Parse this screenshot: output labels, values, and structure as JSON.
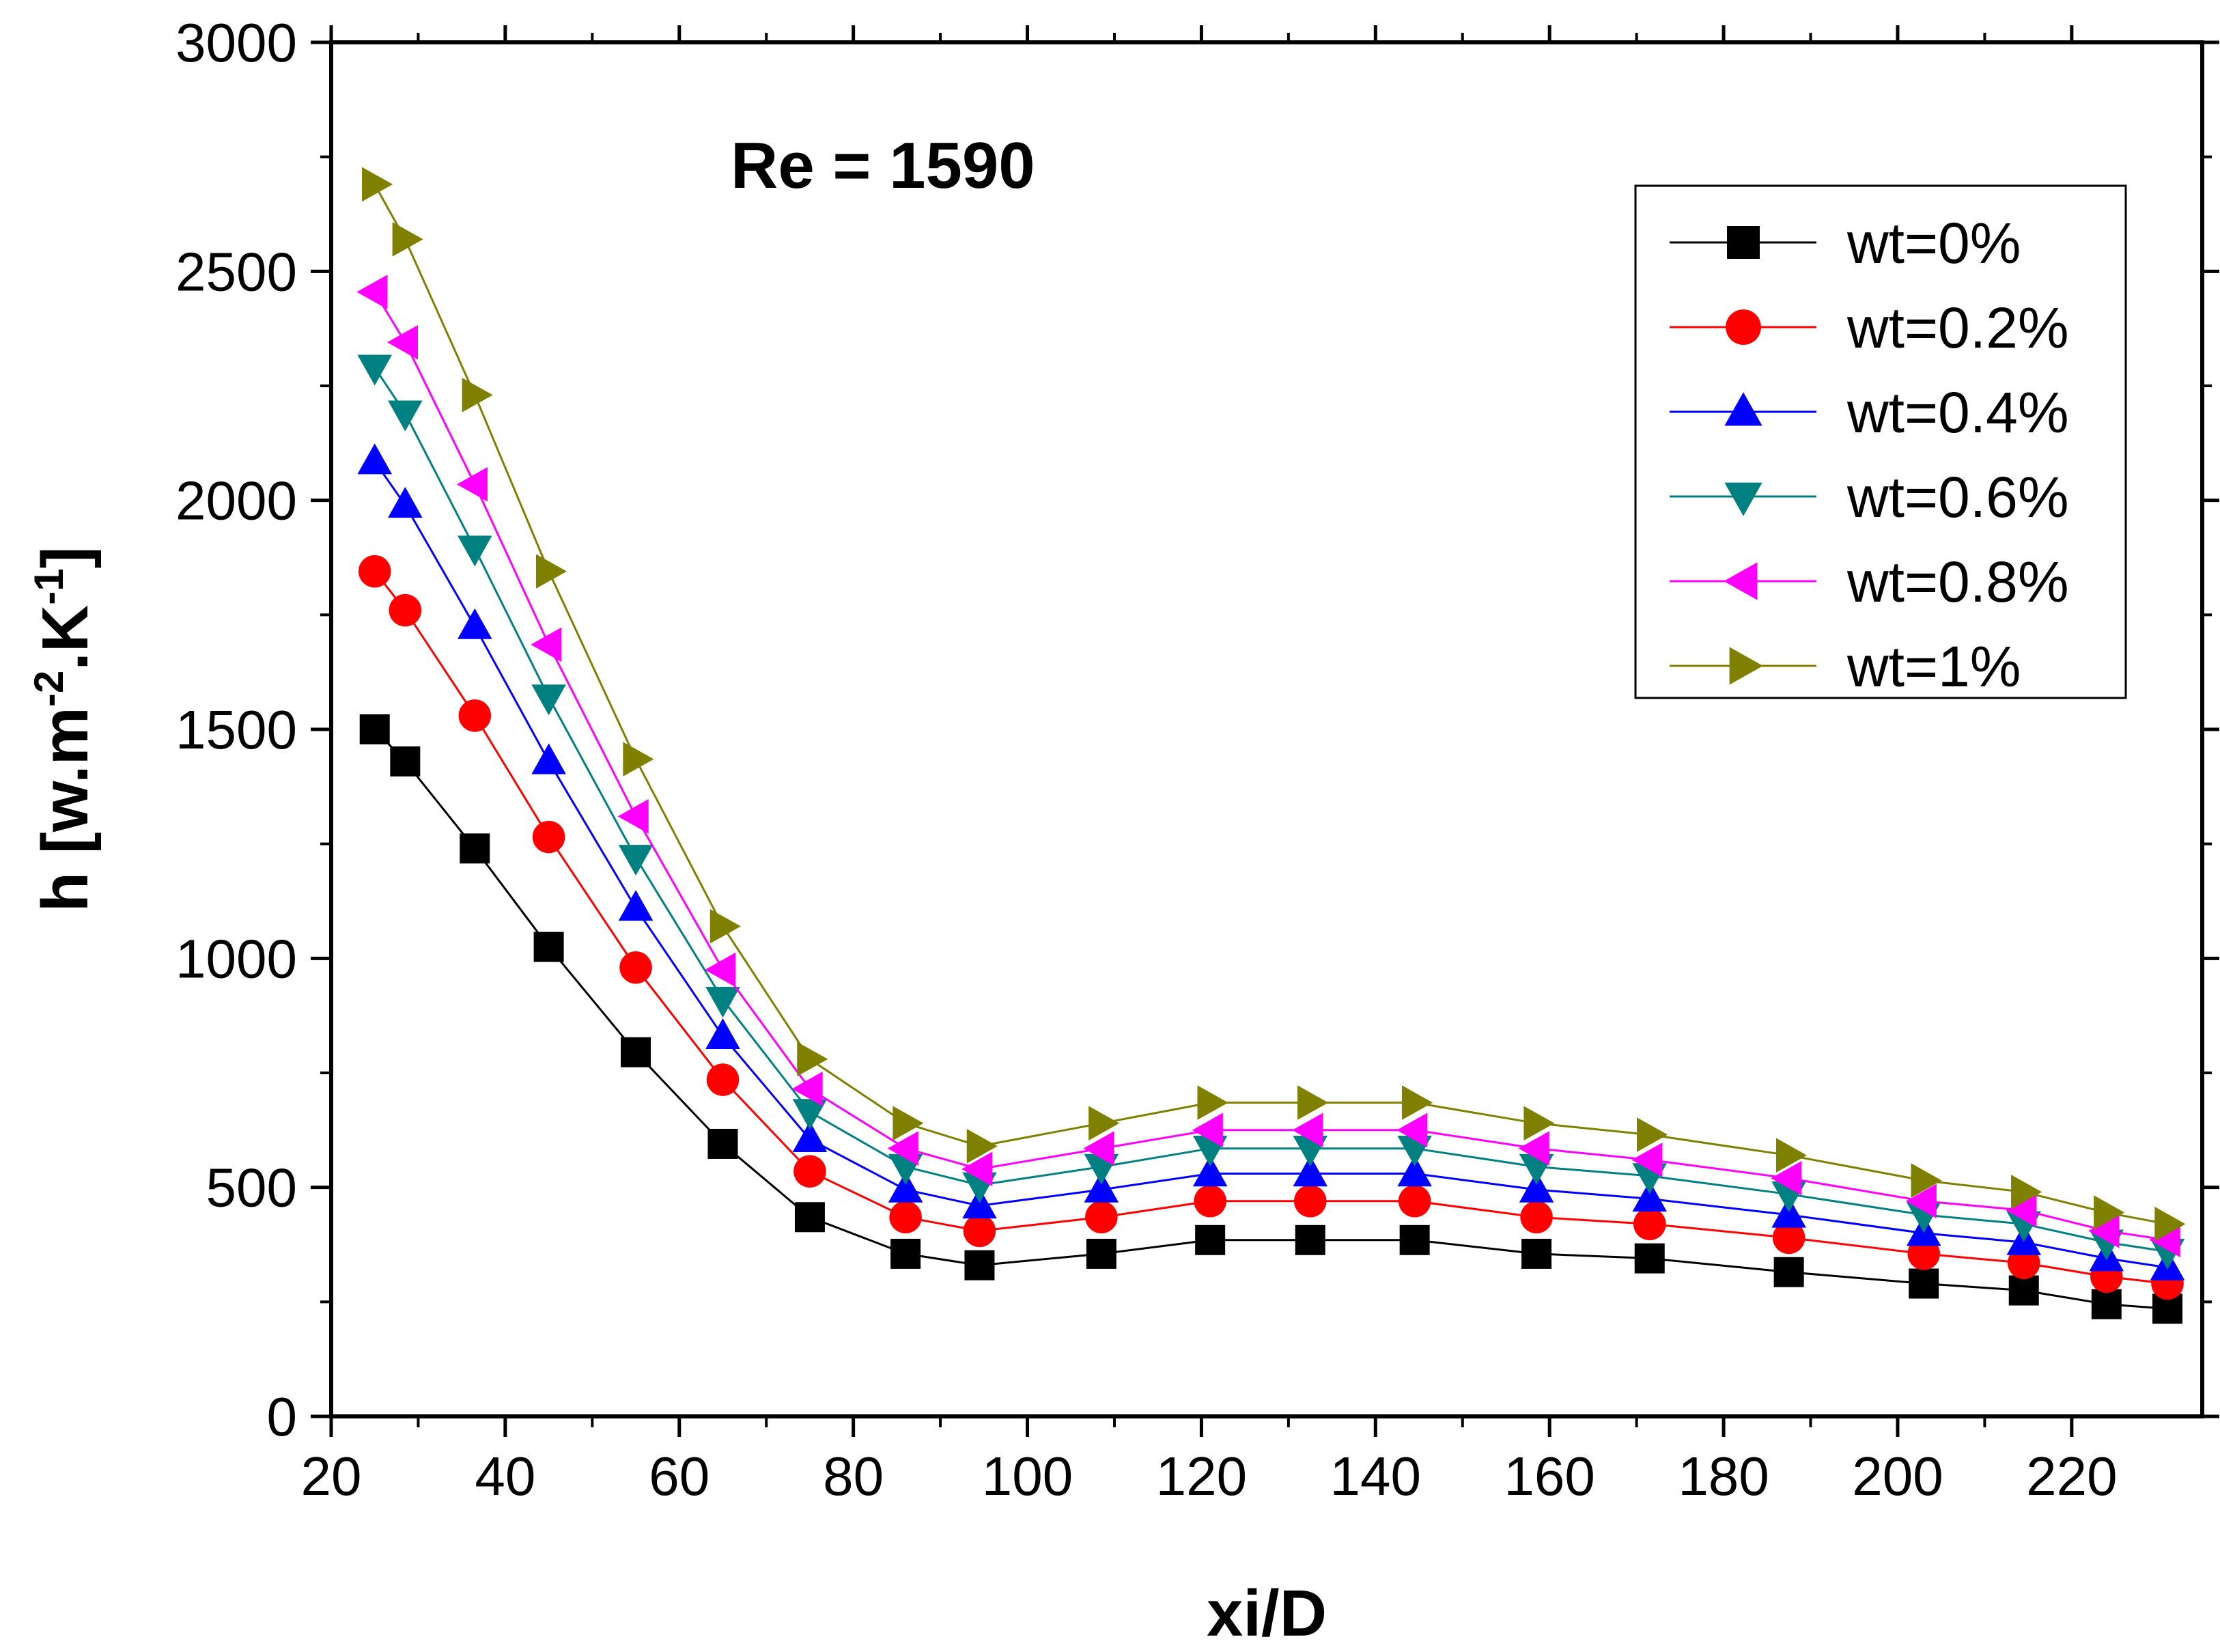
{
  "chart_data": {
    "type": "line",
    "title": "",
    "annotation": "Re = 1590",
    "xlabel": "xi/D",
    "ylabel": "h [w.m-2.K-1]",
    "ylabel_parts": {
      "base": "h [w.m",
      "exp1": "-2",
      "mid": ".K",
      "exp2": "-1",
      "end": "]"
    },
    "xlim": [
      20,
      235
    ],
    "ylim": [
      0,
      3000
    ],
    "x_ticks": [
      20,
      40,
      60,
      80,
      100,
      120,
      140,
      160,
      180,
      200,
      220
    ],
    "y_ticks": [
      0,
      500,
      1000,
      1500,
      2000,
      2500,
      3000
    ],
    "grid": false,
    "legend_position": "top-right",
    "x": [
      25,
      28.5,
      36.5,
      45,
      55,
      65,
      75,
      86,
      94.5,
      108.5,
      121,
      132.5,
      144.5,
      158.5,
      171.5,
      187.5,
      203,
      214.5,
      224,
      231
    ],
    "series": [
      {
        "name": "wt=0%",
        "color": "#000000",
        "marker": "square",
        "values": [
          1500,
          1430,
          1240,
          1025,
          795,
          595,
          435,
          355,
          330,
          355,
          385,
          385,
          385,
          355,
          345,
          315,
          290,
          275,
          245,
          235
        ]
      },
      {
        "name": "wt=0.2%",
        "color": "#ff0000",
        "marker": "circle",
        "values": [
          1845,
          1760,
          1530,
          1265,
          980,
          735,
          535,
          435,
          405,
          435,
          470,
          470,
          470,
          435,
          420,
          390,
          355,
          335,
          305,
          290
        ]
      },
      {
        "name": "wt=0.4%",
        "color": "#0000ff",
        "marker": "triangle-up",
        "values": [
          2085,
          1990,
          1725,
          1430,
          1110,
          830,
          605,
          495,
          460,
          495,
          530,
          530,
          530,
          495,
          475,
          440,
          400,
          380,
          345,
          325
        ]
      },
      {
        "name": "wt=0.6%",
        "color": "#008080",
        "marker": "triangle-down",
        "values": [
          2290,
          2190,
          1895,
          1570,
          1220,
          910,
          665,
          545,
          505,
          545,
          585,
          585,
          585,
          545,
          525,
          485,
          440,
          420,
          380,
          360
        ]
      },
      {
        "name": "wt=0.8%",
        "color": "#ff00ff",
        "marker": "triangle-left",
        "values": [
          2455,
          2345,
          2035,
          1685,
          1310,
          975,
          715,
          585,
          540,
          585,
          625,
          625,
          625,
          585,
          560,
          520,
          470,
          450,
          405,
          385
        ]
      },
      {
        "name": "wt=1%",
        "color": "#808000",
        "marker": "triangle-right",
        "values": [
          2690,
          2570,
          2230,
          1845,
          1435,
          1070,
          780,
          640,
          590,
          640,
          685,
          685,
          685,
          640,
          615,
          570,
          515,
          490,
          445,
          420
        ]
      }
    ]
  }
}
